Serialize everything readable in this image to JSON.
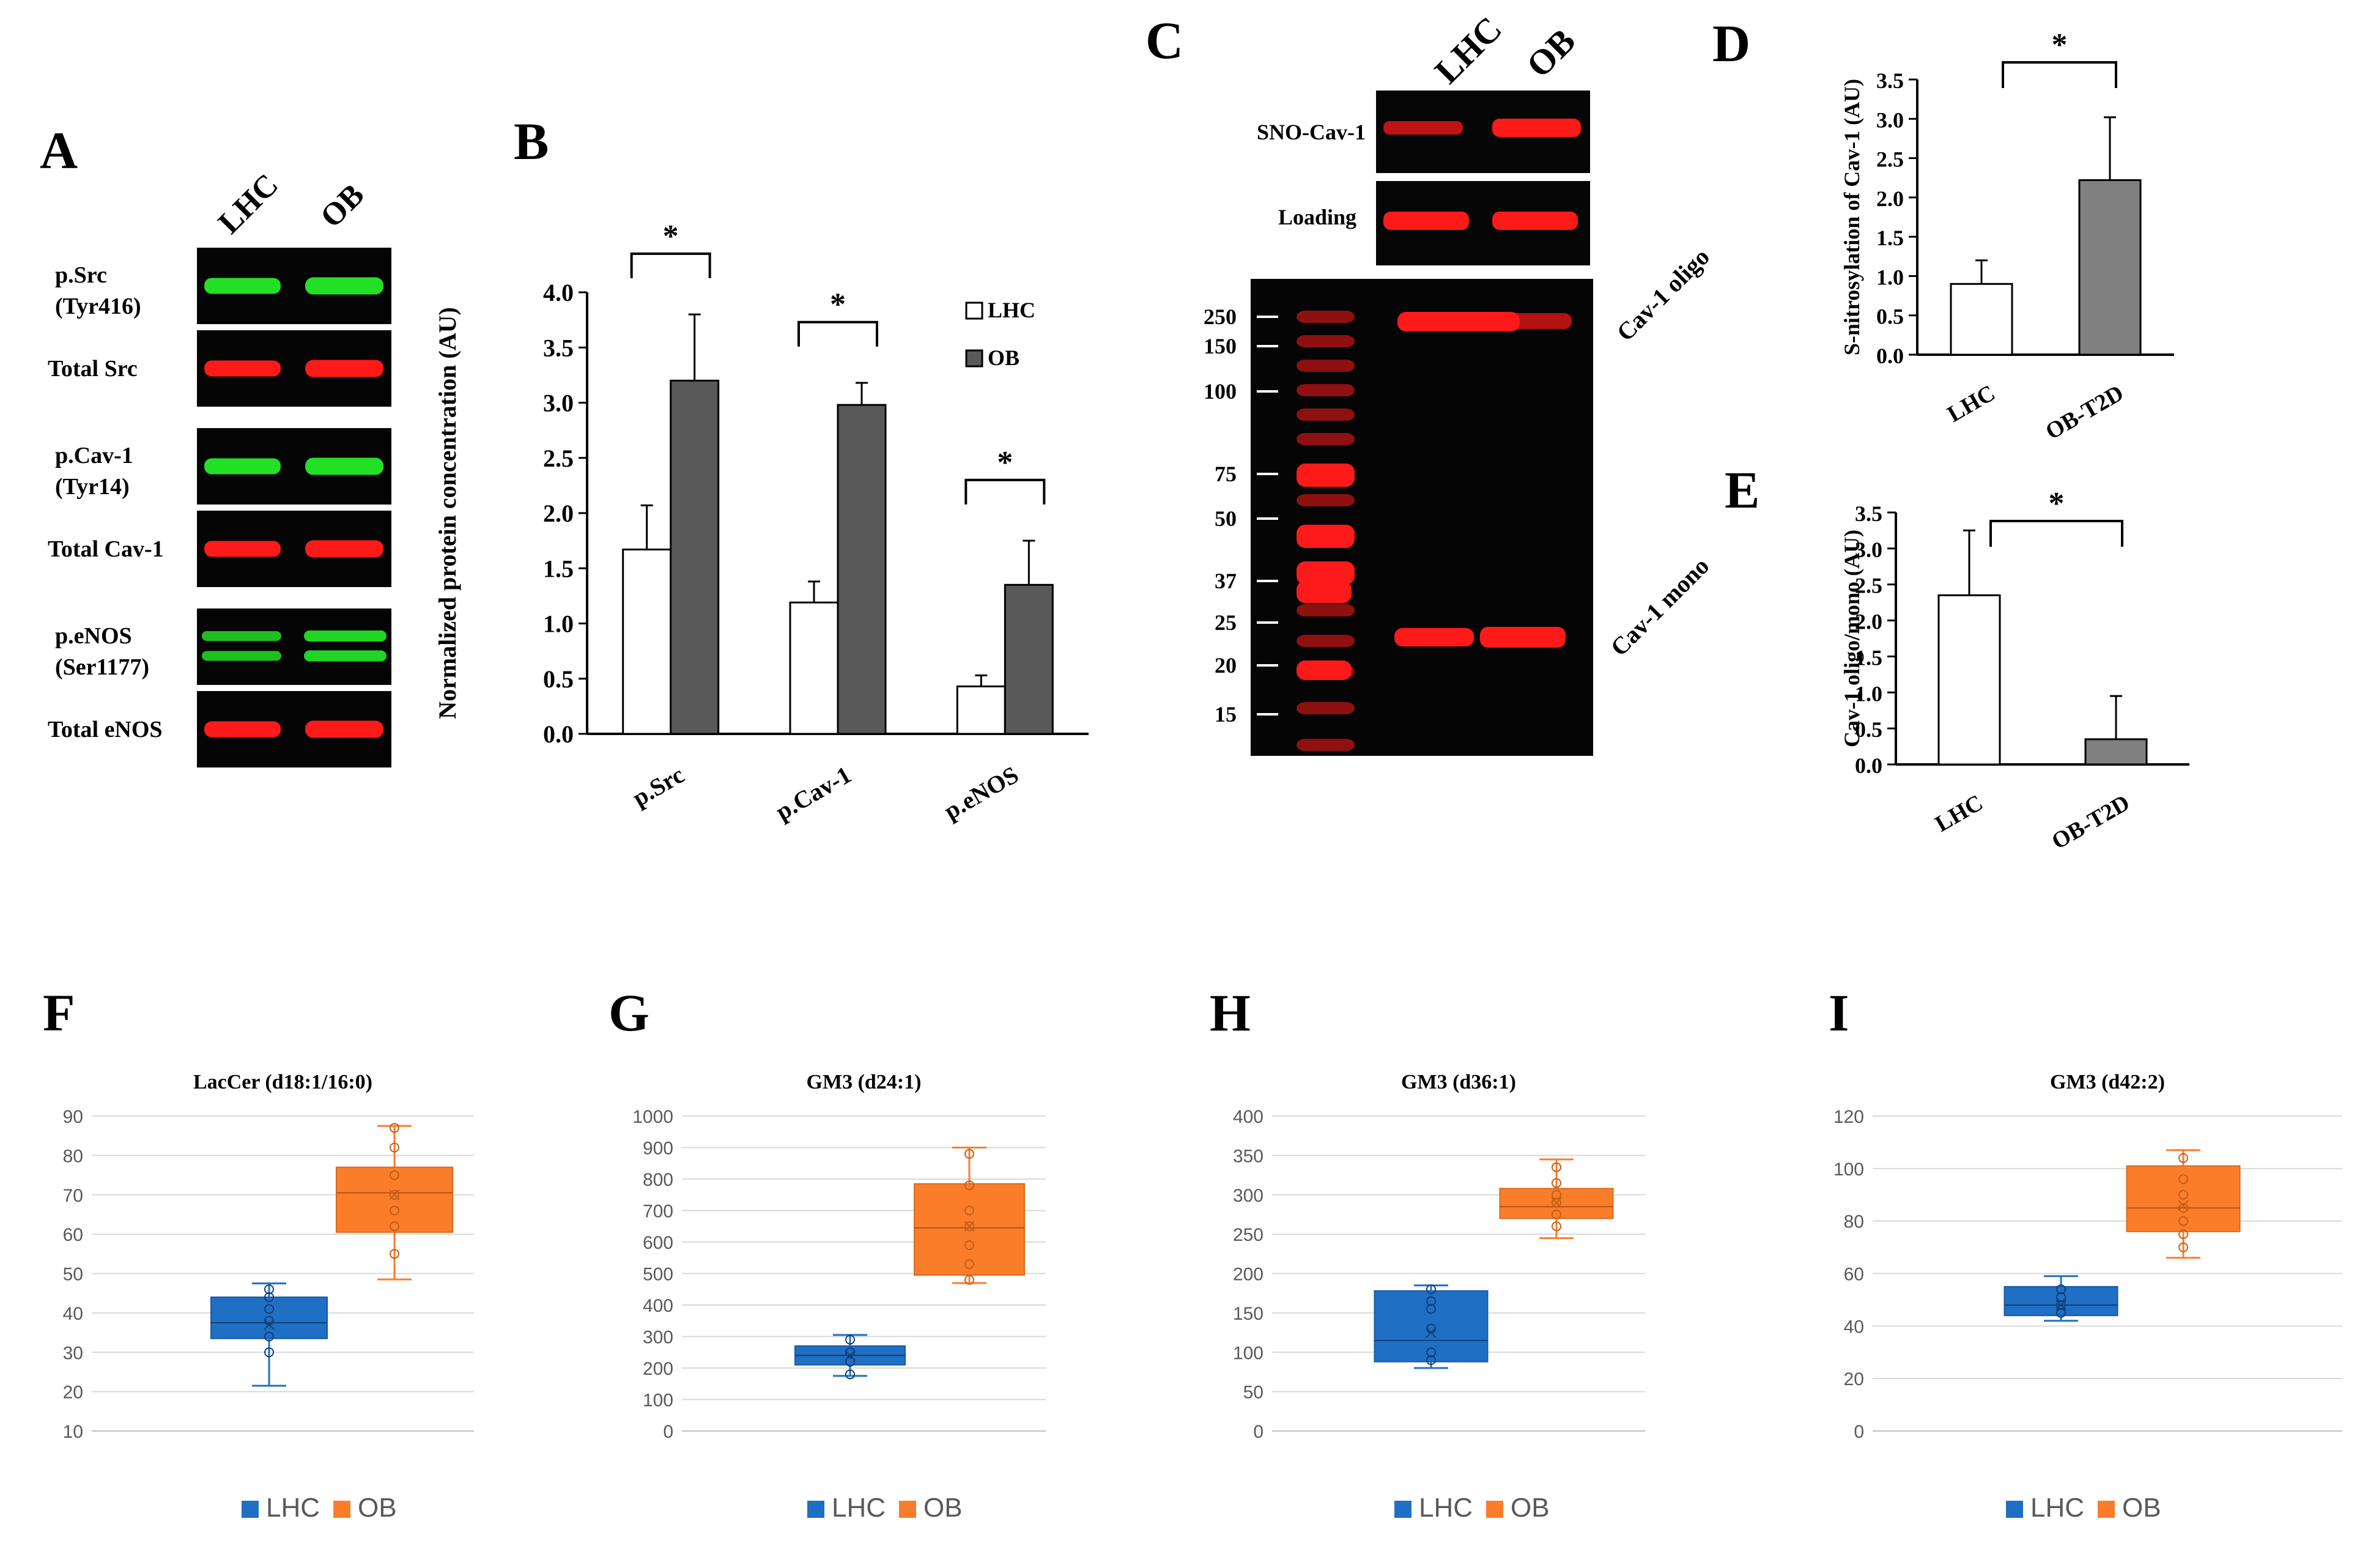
{
  "figure": {
    "panel_letters": {
      "A": "A",
      "B": "B",
      "C": "C",
      "D": "D",
      "E": "E",
      "F": "F",
      "G": "G",
      "H": "H",
      "I": "I"
    },
    "colors": {
      "bar_lhc": "#ffffff",
      "bar_ob_b": "#595959",
      "bar_ob_de": "#808080",
      "box_lhc": "#1f6fc5",
      "box_ob": "#fb7d2a",
      "blot_green": "#22e025",
      "blot_red": "#ff1a1a",
      "blot_bg": "#050505"
    }
  },
  "panel_a": {
    "lanes": [
      "LHC",
      "OB"
    ],
    "blots": [
      {
        "label1": "p.Src",
        "label2": "(Tyr416)",
        "color": "green"
      },
      {
        "label1": "Total Src",
        "label2": "",
        "color": "red"
      },
      {
        "label1": "p.Cav-1",
        "label2": "(Tyr14)",
        "color": "green"
      },
      {
        "label1": "Total Cav-1",
        "label2": "",
        "color": "red"
      },
      {
        "label1": "p.eNOS",
        "label2": "(Ser1177)",
        "color": "green"
      },
      {
        "label1": "Total eNOS",
        "label2": "",
        "color": "red"
      }
    ]
  },
  "panel_c": {
    "lanes": [
      "LHC",
      "OB"
    ],
    "top_labels": [
      "SNO-Cav-1",
      "Loading"
    ],
    "markers": [
      "250",
      "150",
      "100",
      "75",
      "50",
      "37",
      "25",
      "20",
      "15"
    ],
    "band_labels": [
      "Cav-1 oligo",
      "Cav-1 mono"
    ]
  },
  "chart_data": [
    {
      "panel": "B",
      "type": "bar",
      "ylabel": "Normalized protein concentration (AU)",
      "categories": [
        "p.Src",
        "p.Cav-1",
        "p.eNOS"
      ],
      "series": [
        {
          "name": "LHC",
          "values": [
            1.67,
            1.19,
            0.43
          ],
          "errors": [
            0.4,
            0.19,
            0.1
          ]
        },
        {
          "name": "OB",
          "values": [
            3.2,
            2.98,
            1.35
          ],
          "errors": [
            0.6,
            0.2,
            0.4
          ]
        }
      ],
      "ylim": [
        0,
        4.0
      ],
      "yticks": [
        "0.0",
        "0.5",
        "1.0",
        "1.5",
        "2.0",
        "2.5",
        "3.0",
        "3.5",
        "4.0"
      ],
      "significance": [
        "*",
        "*",
        "*"
      ],
      "legend": "top-right"
    },
    {
      "panel": "D",
      "type": "bar",
      "ylabel": "S-nitrosylation of Cav-1 (AU)",
      "categories": [
        "LHC",
        "OB-T2D"
      ],
      "values": [
        0.9,
        2.22
      ],
      "errors": [
        0.3,
        0.8
      ],
      "ylim": [
        0,
        3.5
      ],
      "yticks": [
        "0.0",
        "0.5",
        "1.0",
        "1.5",
        "2.0",
        "2.5",
        "3.0",
        "3.5"
      ],
      "significance": "*"
    },
    {
      "panel": "E",
      "type": "bar",
      "ylabel": "Cav-1 oligo/mono (AU)",
      "categories": [
        "LHC",
        "OB-T2D"
      ],
      "values": [
        2.35,
        0.35
      ],
      "errors": [
        0.9,
        0.6
      ],
      "ylim": [
        0,
        3.5
      ],
      "yticks": [
        "0.0",
        "0.5",
        "1.0",
        "1.5",
        "2.0",
        "2.5",
        "3.0",
        "3.5"
      ],
      "significance": "*"
    },
    {
      "panel": "F",
      "type": "box",
      "title": "LacCer (d18:1/16:0)",
      "ylim": [
        10,
        90
      ],
      "yticks": [
        "10",
        "20",
        "30",
        "40",
        "50",
        "60",
        "70",
        "80",
        "90"
      ],
      "legend": [
        "LHC",
        "OB"
      ],
      "groups": [
        {
          "name": "LHC",
          "min": 21.5,
          "q1": 33.5,
          "median": 37.5,
          "q3": 44,
          "max": 47.5,
          "mean": 37,
          "points": [
            30,
            34,
            38,
            41,
            44,
            46
          ]
        },
        {
          "name": "OB",
          "min": 48.5,
          "q1": 60.5,
          "median": 70.5,
          "q3": 77,
          "max": 87.5,
          "mean": 70,
          "points": [
            55,
            62,
            66,
            70,
            75,
            82,
            87
          ]
        }
      ]
    },
    {
      "panel": "G",
      "type": "box",
      "title": "GM3 (d24:1)",
      "ylim": [
        0,
        1000
      ],
      "yticks": [
        "0",
        "100",
        "200",
        "300",
        "400",
        "500",
        "600",
        "700",
        "800",
        "900",
        "1000"
      ],
      "legend": [
        "LHC",
        "OB"
      ],
      "groups": [
        {
          "name": "LHC",
          "min": 175,
          "q1": 210,
          "median": 240,
          "q3": 270,
          "max": 305,
          "mean": 240,
          "points": [
            180,
            220,
            250,
            290
          ]
        },
        {
          "name": "OB",
          "min": 470,
          "q1": 495,
          "median": 645,
          "q3": 785,
          "max": 900,
          "mean": 650,
          "points": [
            480,
            530,
            590,
            650,
            700,
            780,
            880
          ]
        }
      ]
    },
    {
      "panel": "H",
      "type": "box",
      "title": "GM3 (d36:1)",
      "ylim": [
        0,
        400
      ],
      "yticks": [
        "0",
        "50",
        "100",
        "150",
        "200",
        "250",
        "300",
        "350",
        "400"
      ],
      "legend": [
        "LHC",
        "OB"
      ],
      "groups": [
        {
          "name": "LHC",
          "min": 80,
          "q1": 88,
          "median": 115,
          "q3": 178,
          "max": 185,
          "mean": 125,
          "points": [
            90,
            100,
            130,
            155,
            165,
            180
          ]
        },
        {
          "name": "OB",
          "min": 245,
          "q1": 270,
          "median": 285,
          "q3": 308,
          "max": 345,
          "mean": 290,
          "points": [
            260,
            275,
            290,
            300,
            315,
            335
          ]
        }
      ]
    },
    {
      "panel": "I",
      "type": "box",
      "title": "GM3 (d42:2)",
      "ylim": [
        0,
        120
      ],
      "yticks": [
        "0",
        "20",
        "40",
        "60",
        "80",
        "100",
        "120"
      ],
      "legend": [
        "LHC",
        "OB"
      ],
      "groups": [
        {
          "name": "LHC",
          "min": 42,
          "q1": 44,
          "median": 48,
          "q3": 55,
          "max": 59,
          "mean": 48,
          "points": [
            45,
            48,
            51,
            54
          ]
        },
        {
          "name": "OB",
          "min": 66,
          "q1": 76,
          "median": 85,
          "q3": 101,
          "max": 107,
          "mean": 86,
          "points": [
            70,
            75,
            80,
            85,
            90,
            96,
            104
          ]
        }
      ]
    }
  ]
}
